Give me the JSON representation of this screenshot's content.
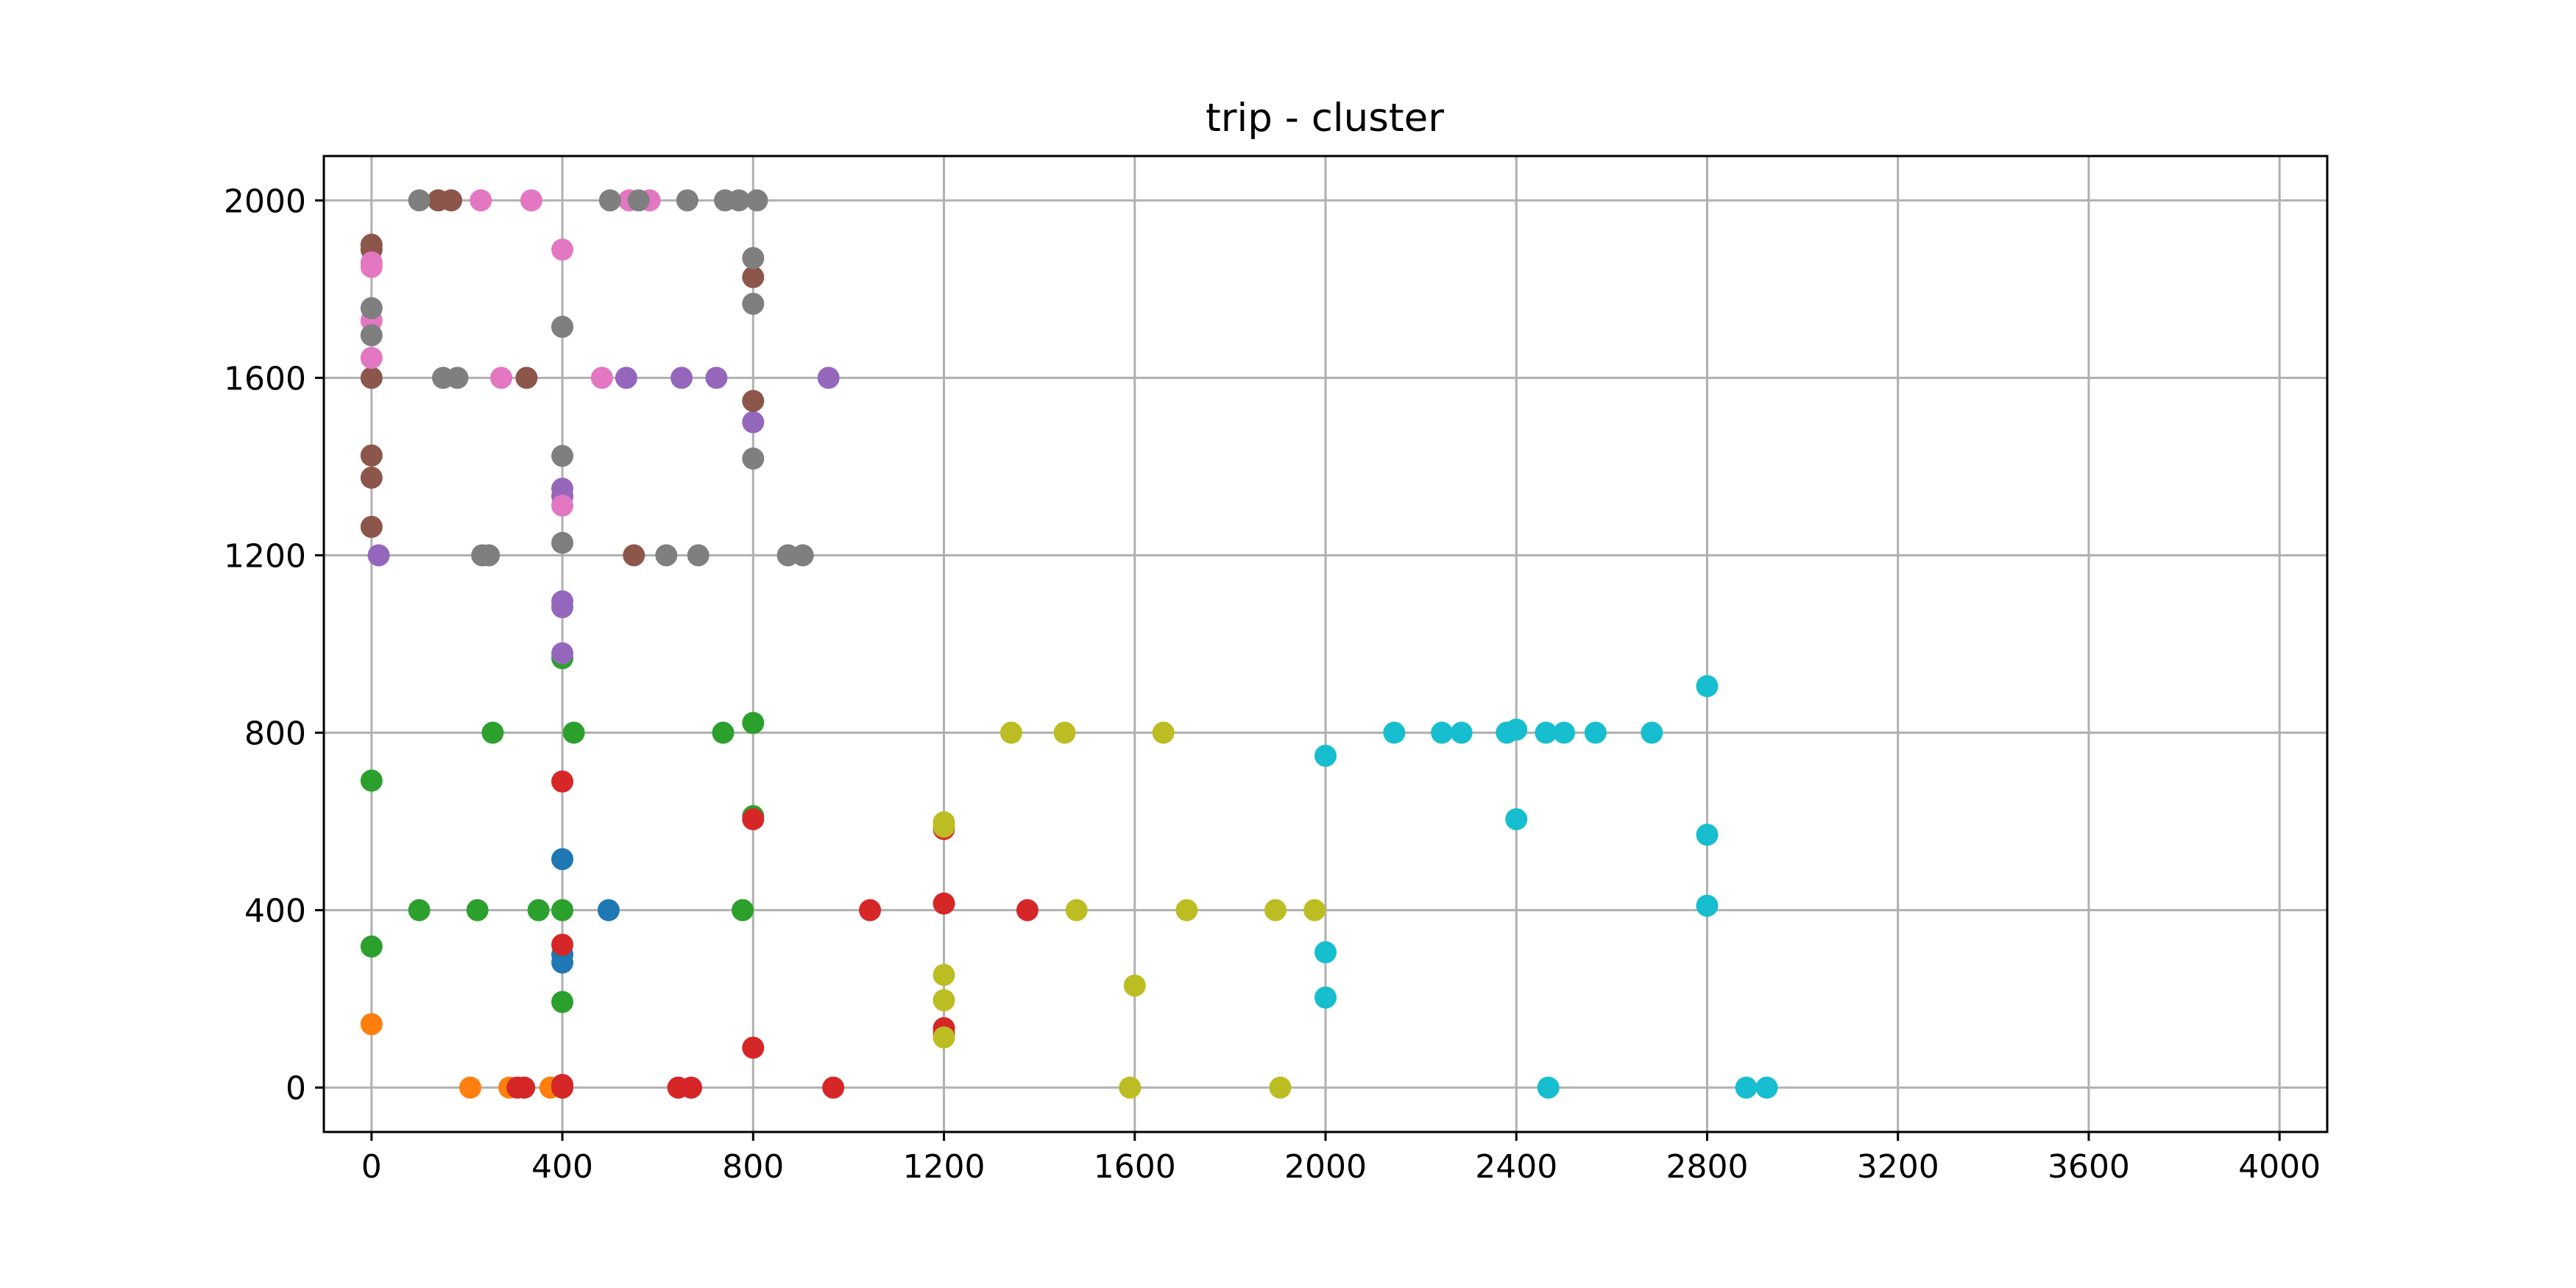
{
  "chart_data": {
    "type": "scatter",
    "title": "trip - cluster",
    "xlabel": "",
    "ylabel": "",
    "xlim": [
      -100,
      4100
    ],
    "ylim": [
      -100,
      2100
    ],
    "grid": true,
    "legend": "none",
    "x_ticks": [
      0,
      400,
      800,
      1200,
      1600,
      2000,
      2400,
      2800,
      3200,
      3600,
      4000
    ],
    "y_ticks": [
      0,
      400,
      800,
      1200,
      1600,
      2000
    ],
    "x_tick_labels": [
      "0",
      "400",
      "800",
      "1200",
      "1600",
      "2000",
      "2400",
      "2800",
      "3200",
      "3600",
      "4000"
    ],
    "y_tick_labels": [
      "0",
      "400",
      "800",
      "1200",
      "1600",
      "2000"
    ],
    "series": [
      {
        "color": "#1f77b4",
        "points": [
          [
            400,
            515
          ],
          [
            400,
            300
          ],
          [
            400,
            282
          ],
          [
            497,
            400
          ]
        ]
      },
      {
        "color": "#ff7f0e",
        "points": [
          [
            0,
            143
          ],
          [
            207,
            0
          ],
          [
            289,
            0
          ],
          [
            375,
            0
          ]
        ]
      },
      {
        "color": "#2ca02c",
        "points": [
          [
            0,
            692
          ],
          [
            0,
            318
          ],
          [
            100,
            400
          ],
          [
            222,
            400
          ],
          [
            254,
            800
          ],
          [
            350,
            400
          ],
          [
            400,
            400
          ],
          [
            400,
            193
          ],
          [
            400,
            968
          ],
          [
            424,
            800
          ],
          [
            737,
            800
          ],
          [
            778,
            400
          ],
          [
            800,
            822
          ],
          [
            800,
            612
          ]
        ]
      },
      {
        "color": "#d62728",
        "points": [
          [
            306,
            0
          ],
          [
            320,
            0
          ],
          [
            400,
            690
          ],
          [
            400,
            322
          ],
          [
            400,
            6
          ],
          [
            400,
            0
          ],
          [
            643,
            0
          ],
          [
            670,
            0
          ],
          [
            800,
            605
          ],
          [
            800,
            90
          ],
          [
            968,
            0
          ],
          [
            1045,
            400
          ],
          [
            1200,
            415
          ],
          [
            1200,
            583
          ],
          [
            1200,
            134
          ],
          [
            1200,
            122
          ],
          [
            1375,
            400
          ]
        ]
      },
      {
        "color": "#9467bd",
        "points": [
          [
            15,
            1200
          ],
          [
            400,
            1350
          ],
          [
            400,
            1333
          ],
          [
            400,
            1096
          ],
          [
            400,
            1083
          ],
          [
            400,
            979
          ],
          [
            534,
            1600
          ],
          [
            650,
            1600
          ],
          [
            723,
            1600
          ],
          [
            800,
            1500
          ],
          [
            958,
            1600
          ]
        ]
      },
      {
        "color": "#8c564b",
        "points": [
          [
            0,
            1900
          ],
          [
            0,
            1889
          ],
          [
            0,
            1600
          ],
          [
            0,
            1425
          ],
          [
            0,
            1375
          ],
          [
            0,
            1264
          ],
          [
            140,
            2000
          ],
          [
            167,
            2000
          ],
          [
            325,
            1600
          ],
          [
            550,
            1200
          ],
          [
            800,
            1827
          ],
          [
            800,
            1548
          ]
        ]
      },
      {
        "color": "#e377c2",
        "points": [
          [
            0,
            1860
          ],
          [
            0,
            1850
          ],
          [
            0,
            1729
          ],
          [
            0,
            1645
          ],
          [
            229,
            2000
          ],
          [
            272,
            1600
          ],
          [
            335,
            2000
          ],
          [
            400,
            1889
          ],
          [
            400,
            1715
          ],
          [
            400,
            1312
          ],
          [
            483,
            1600
          ],
          [
            540,
            2000
          ],
          [
            583,
            2000
          ]
        ]
      },
      {
        "color": "#7f7f7f",
        "points": [
          [
            0,
            1757
          ],
          [
            0,
            1696
          ],
          [
            100,
            2000
          ],
          [
            150,
            1600
          ],
          [
            180,
            1600
          ],
          [
            232,
            1200
          ],
          [
            246,
            1200
          ],
          [
            400,
            1715
          ],
          [
            400,
            1424
          ],
          [
            400,
            1228
          ],
          [
            500,
            2000
          ],
          [
            560,
            2000
          ],
          [
            618,
            1200
          ],
          [
            662,
            2000
          ],
          [
            685,
            1200
          ],
          [
            741,
            2000
          ],
          [
            770,
            2000
          ],
          [
            808,
            2000
          ],
          [
            800,
            1870
          ],
          [
            800,
            1767
          ],
          [
            800,
            1418
          ],
          [
            873,
            1200
          ],
          [
            904,
            1200
          ]
        ]
      },
      {
        "color": "#bcbd22",
        "points": [
          [
            1200,
            598
          ],
          [
            1200,
            588
          ],
          [
            1200,
            254
          ],
          [
            1200,
            197
          ],
          [
            1200,
            113
          ],
          [
            1341,
            800
          ],
          [
            1453,
            800
          ],
          [
            1478,
            400
          ],
          [
            1590,
            0
          ],
          [
            1600,
            230
          ],
          [
            1660,
            800
          ],
          [
            1709,
            400
          ],
          [
            1895,
            400
          ],
          [
            1905,
            0
          ],
          [
            1977,
            400
          ]
        ]
      },
      {
        "color": "#17becf",
        "points": [
          [
            2000,
            748
          ],
          [
            2000,
            305
          ],
          [
            2000,
            203
          ],
          [
            2144,
            800
          ],
          [
            2244,
            800
          ],
          [
            2285,
            800
          ],
          [
            2380,
            800
          ],
          [
            2400,
            807
          ],
          [
            2400,
            605
          ],
          [
            2462,
            800
          ],
          [
            2467,
            0
          ],
          [
            2500,
            800
          ],
          [
            2566,
            800
          ],
          [
            2684,
            800
          ],
          [
            2800,
            905
          ],
          [
            2800,
            570
          ],
          [
            2800,
            410
          ],
          [
            2882,
            0
          ],
          [
            2925,
            0
          ]
        ]
      }
    ]
  }
}
